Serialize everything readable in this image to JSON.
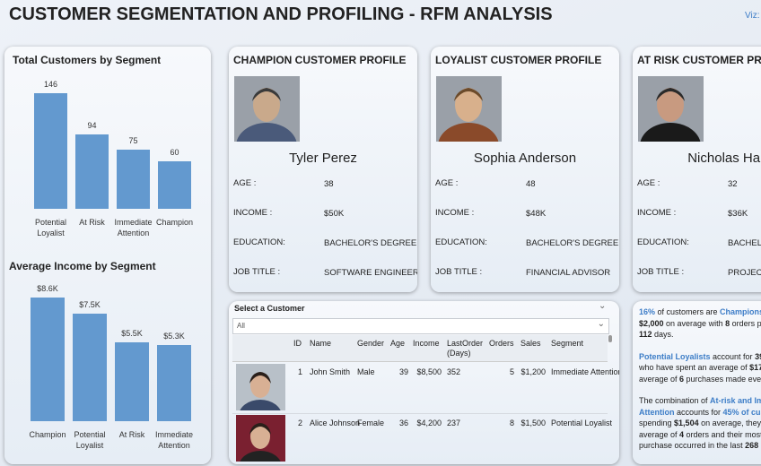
{
  "header": {
    "title": "CUSTOMER SEGMENTATION AND PROFILING - RFM ANALYSIS",
    "viz": "Viz: I"
  },
  "chart_data": [
    {
      "type": "bar",
      "title": "Total Customers by Segment",
      "categories": [
        "Potential Loyalist",
        "At Risk",
        "Immediate Attention",
        "Champion"
      ],
      "values": [
        146,
        94,
        75,
        60
      ],
      "color": "#6399cf",
      "ylim": [
        0,
        150
      ]
    },
    {
      "type": "bar",
      "title": "Average Income by Segment",
      "categories": [
        "Champion",
        "Potential Loyalist",
        "At Risk",
        "Immediate Attention"
      ],
      "values": [
        8600,
        7500,
        5500,
        5300
      ],
      "value_labels": [
        "$8.6K",
        "$7.5K",
        "$5.5K",
        "$5.3K"
      ],
      "color": "#6399cf",
      "ylim": [
        0,
        9000
      ]
    }
  ],
  "profiles": [
    {
      "title": "CHAMPION CUSTOMER PROFILE",
      "name": "Tyler Perez",
      "fields": [
        [
          "AGE :",
          "38"
        ],
        [
          "INCOME :",
          "$50K"
        ],
        [
          "EDUCATION:",
          "BACHELOR'S DEGREE"
        ],
        [
          "JOB TITLE :",
          "SOFTWARE ENGINEER"
        ]
      ]
    },
    {
      "title": "LOYALIST CUSTOMER PROFILE",
      "name": "Sophia Anderson",
      "fields": [
        [
          "AGE :",
          "48"
        ],
        [
          "INCOME :",
          "$48K"
        ],
        [
          "EDUCATION:",
          "BACHELOR'S DEGREE"
        ],
        [
          "JOB TITLE :",
          "FINANCIAL ADVISOR"
        ]
      ]
    },
    {
      "title": "AT RISK CUSTOMER PROFILE",
      "name": "Nicholas Hall",
      "fields": [
        [
          "AGE :",
          "32"
        ],
        [
          "INCOME :",
          "$36K"
        ],
        [
          "EDUCATION:",
          "BACHELOR'S DEGREE"
        ],
        [
          "JOB TITLE :",
          "PROJECT MANAGER"
        ]
      ]
    }
  ],
  "table": {
    "slicer_title": "Select a Customer",
    "slicer_value": "All",
    "columns": [
      "ID",
      "Name",
      "Gender",
      "Age",
      "Income",
      "LastOrder (Days)",
      "Orders",
      "Sales",
      "Segment"
    ],
    "rows": [
      [
        1,
        "John Smith",
        "Male",
        39,
        "$8,500",
        352,
        5,
        "$1,200",
        "Immediate Attention"
      ],
      [
        2,
        "Alice Johnson",
        "Female",
        36,
        "$4,200",
        237,
        8,
        "$1,500",
        "Potential Loyalist"
      ]
    ]
  },
  "insights": [
    [
      [
        "16%",
        " of customers are ",
        "Champions"
      ],
      [
        "$2,000",
        " on average with ",
        "8",
        " orders p"
      ],
      [
        "112",
        " days."
      ]
    ],
    [
      [
        "Potential Loyalists",
        " account for ",
        "39"
      ],
      [
        "who have spent an average of ",
        "$17"
      ],
      [
        "average of ",
        "6",
        " purchases made every"
      ]
    ],
    [
      [
        "The combination of ",
        "At-risk and Im"
      ],
      [
        "Attention",
        " accounts for ",
        "45% of cus"
      ],
      [
        "spending ",
        "$1,504",
        " on average, they"
      ],
      [
        "average of ",
        "4",
        " orders and their most"
      ],
      [
        "purchase occurred in the last ",
        "268 c"
      ]
    ]
  ]
}
